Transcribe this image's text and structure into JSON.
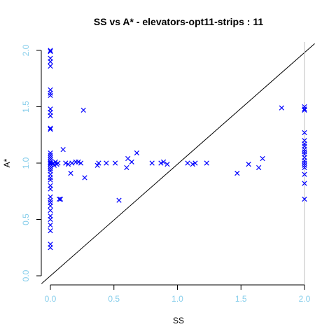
{
  "chart_data": {
    "type": "scatter",
    "title": "SS vs A* - elevators-opt11-strips : 11",
    "xlabel": "SS",
    "ylabel": "A*",
    "xlim": [
      0,
      2
    ],
    "ylim": [
      0,
      2
    ],
    "x_ticks": [
      "0.0",
      "0.5",
      "1.0",
      "1.5",
      "2.0"
    ],
    "y_ticks": [
      "0.0",
      "0.5",
      "1.0",
      "1.5",
      "2.0"
    ],
    "marker": "x",
    "marker_color": "#0000ff",
    "tick_label_color": "#87ceeb",
    "reference_line": "y = x",
    "reference_vline_x": 2.0,
    "points": [
      [
        0,
        2.0
      ],
      [
        0,
        1.99
      ],
      [
        0,
        1.93
      ],
      [
        0,
        1.9
      ],
      [
        0,
        1.86
      ],
      [
        0,
        1.65
      ],
      [
        0,
        1.62
      ],
      [
        0,
        1.6
      ],
      [
        0,
        1.48
      ],
      [
        0,
        1.45
      ],
      [
        0,
        1.42
      ],
      [
        0,
        1.31
      ],
      [
        0,
        1.3
      ],
      [
        0,
        1.09
      ],
      [
        0,
        1.07
      ],
      [
        0,
        1.05
      ],
      [
        0,
        1.03
      ],
      [
        0,
        1.01
      ],
      [
        0,
        1.0
      ],
      [
        0,
        0.99
      ],
      [
        0,
        0.97
      ],
      [
        0,
        0.95
      ],
      [
        0,
        0.93
      ],
      [
        0,
        0.9
      ],
      [
        0,
        0.87
      ],
      [
        0,
        0.85
      ],
      [
        0,
        0.8
      ],
      [
        0,
        0.77
      ],
      [
        0,
        0.7
      ],
      [
        0,
        0.67
      ],
      [
        0,
        0.65
      ],
      [
        0,
        0.62
      ],
      [
        0,
        0.58
      ],
      [
        0,
        0.53
      ],
      [
        0,
        0.5
      ],
      [
        0,
        0.45
      ],
      [
        0,
        0.4
      ],
      [
        0,
        0.28
      ],
      [
        0,
        0.25
      ],
      [
        0.02,
        1.0
      ],
      [
        0.03,
        0.98
      ],
      [
        0.04,
        1.01
      ],
      [
        0.05,
        0.99
      ],
      [
        0.06,
        1.0
      ],
      [
        0.07,
        0.68
      ],
      [
        0.08,
        0.68
      ],
      [
        0.1,
        1.12
      ],
      [
        0.12,
        1.0
      ],
      [
        0.14,
        0.99
      ],
      [
        0.16,
        0.91
      ],
      [
        0.17,
        1.0
      ],
      [
        0.2,
        1.01
      ],
      [
        0.22,
        1.01
      ],
      [
        0.24,
        1.0
      ],
      [
        0.26,
        1.47
      ],
      [
        0.27,
        0.87
      ],
      [
        0.37,
        0.98
      ],
      [
        0.38,
        1.0
      ],
      [
        0.44,
        1.0
      ],
      [
        0.51,
        1.0
      ],
      [
        0.54,
        0.67
      ],
      [
        0.6,
        0.96
      ],
      [
        0.61,
        1.04
      ],
      [
        0.64,
        1.01
      ],
      [
        0.68,
        1.09
      ],
      [
        0.8,
        1.0
      ],
      [
        0.87,
        1.0
      ],
      [
        0.89,
        1.01
      ],
      [
        0.92,
        0.99
      ],
      [
        1.08,
        1.0
      ],
      [
        1.12,
        0.99
      ],
      [
        1.14,
        1.0
      ],
      [
        1.23,
        1.0
      ],
      [
        1.47,
        0.91
      ],
      [
        1.56,
        0.99
      ],
      [
        1.64,
        0.96
      ],
      [
        1.67,
        1.04
      ],
      [
        1.82,
        1.49
      ],
      [
        2.0,
        1.5
      ],
      [
        2.0,
        1.48
      ],
      [
        2.0,
        1.47
      ],
      [
        2.0,
        1.27
      ],
      [
        2.0,
        1.2
      ],
      [
        2.0,
        1.17
      ],
      [
        2.0,
        1.15
      ],
      [
        2.0,
        1.12
      ],
      [
        2.0,
        1.1
      ],
      [
        2.0,
        1.08
      ],
      [
        2.0,
        1.05
      ],
      [
        2.0,
        1.02
      ],
      [
        2.0,
        1.0
      ],
      [
        2.0,
        0.98
      ],
      [
        2.0,
        0.96
      ],
      [
        2.0,
        0.9
      ],
      [
        2.0,
        0.82
      ],
      [
        2.0,
        0.68
      ]
    ]
  }
}
